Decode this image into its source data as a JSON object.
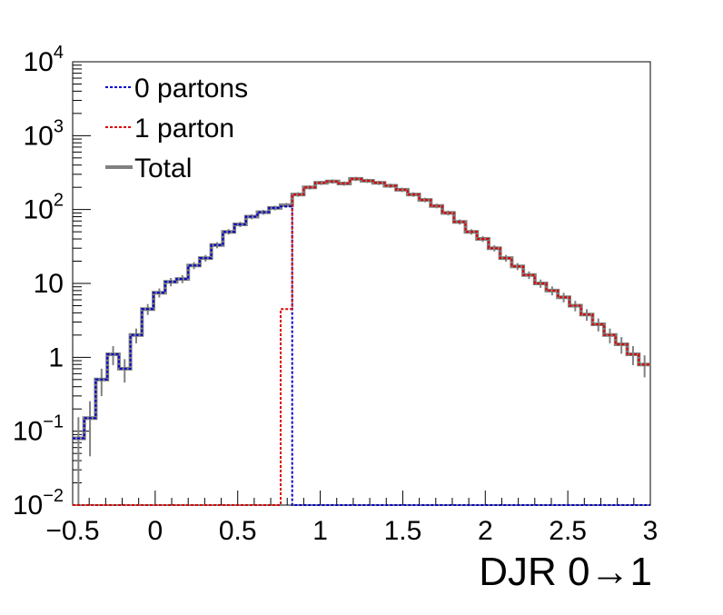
{
  "chart_data": {
    "type": "line",
    "title": "",
    "xlabel": "DJR 0→1",
    "ylabel": "",
    "xlim": [
      -0.5,
      3.0
    ],
    "ylim": [
      0.01,
      10000
    ],
    "y_scale": "log",
    "grid": false,
    "legend_position": "top-left",
    "bin_edges": [
      -0.5,
      -0.43,
      -0.36,
      -0.29,
      -0.22,
      -0.15,
      -0.08,
      -0.01,
      0.06,
      0.13,
      0.2,
      0.27,
      0.34,
      0.41,
      0.48,
      0.55,
      0.62,
      0.69,
      0.76,
      0.83,
      0.9,
      0.97,
      1.04,
      1.11,
      1.18,
      1.25,
      1.32,
      1.39,
      1.46,
      1.53,
      1.6,
      1.67,
      1.74,
      1.81,
      1.88,
      1.95,
      2.02,
      2.09,
      2.16,
      2.23,
      2.3,
      2.37,
      2.44,
      2.51,
      2.58,
      2.65,
      2.72,
      2.79,
      2.86,
      2.93,
      3.0
    ],
    "x_ticks": [
      {
        "value": -0.5,
        "label": "−0.5"
      },
      {
        "value": 0,
        "label": "0"
      },
      {
        "value": 0.5,
        "label": "0.5"
      },
      {
        "value": 1,
        "label": "1"
      },
      {
        "value": 1.5,
        "label": "1.5"
      },
      {
        "value": 2,
        "label": "2"
      },
      {
        "value": 2.5,
        "label": "2.5"
      },
      {
        "value": 3,
        "label": "3"
      }
    ],
    "y_ticks": [
      {
        "value": 0.01,
        "label": "10",
        "exp": "−2"
      },
      {
        "value": 0.1,
        "label": "10",
        "exp": "−1"
      },
      {
        "value": 1,
        "label": "1",
        "exp": ""
      },
      {
        "value": 10,
        "label": "10",
        "exp": ""
      },
      {
        "value": 100,
        "label": "10",
        "exp": "2"
      },
      {
        "value": 1000,
        "label": "10",
        "exp": "3"
      },
      {
        "value": 10000,
        "label": "10",
        "exp": "4"
      }
    ],
    "series": [
      {
        "name": "0 partons",
        "style": "dotted",
        "color": "#0000cc",
        "values": [
          0.08,
          0.15,
          0.5,
          1.1,
          0.7,
          2.0,
          4.5,
          7.5,
          10.5,
          11.5,
          17.5,
          22.0,
          33.0,
          50.0,
          63.0,
          80.0,
          92.0,
          105.0,
          110.0,
          0.01,
          0.01,
          0.01,
          0.01,
          0.01,
          0.01,
          0.01,
          0.01,
          0.01,
          0.01,
          0.01,
          0.01,
          0.01,
          0.01,
          0.01,
          0.01,
          0.01,
          0.01,
          0.01,
          0.01,
          0.01,
          0.01,
          0.01,
          0.01,
          0.01,
          0.01,
          0.01,
          0.01,
          0.01,
          0.01,
          0.01
        ]
      },
      {
        "name": "1 parton",
        "style": "dotted",
        "color": "#dd0000",
        "values": [
          0.01,
          0.01,
          0.01,
          0.01,
          0.01,
          0.01,
          0.01,
          0.01,
          0.01,
          0.01,
          0.01,
          0.01,
          0.01,
          0.01,
          0.01,
          0.01,
          0.01,
          0.01,
          4.5,
          160.0,
          200.0,
          230.0,
          240.0,
          225.0,
          260.0,
          245.0,
          230.0,
          210.0,
          185.0,
          160.0,
          135.0,
          112.0,
          90.0,
          68.0,
          50.0,
          40.0,
          30.0,
          22.0,
          17.0,
          13.0,
          10.0,
          8.0,
          6.5,
          5.0,
          3.8,
          2.8,
          2.0,
          1.5,
          1.1,
          0.8
        ]
      },
      {
        "name": "Total",
        "style": "solid",
        "color": "#808080",
        "values": [
          0.08,
          0.15,
          0.5,
          1.1,
          0.7,
          2.0,
          4.5,
          7.5,
          10.5,
          11.5,
          17.5,
          22.0,
          33.0,
          50.0,
          63.0,
          80.0,
          92.0,
          105.0,
          114.5,
          160.0,
          200.0,
          230.0,
          240.0,
          225.0,
          260.0,
          245.0,
          230.0,
          210.0,
          185.0,
          160.0,
          135.0,
          112.0,
          90.0,
          68.0,
          50.0,
          40.0,
          30.0,
          22.0,
          17.0,
          13.0,
          10.0,
          8.0,
          6.5,
          5.0,
          3.8,
          2.8,
          2.0,
          1.5,
          1.1,
          0.8
        ]
      }
    ]
  }
}
